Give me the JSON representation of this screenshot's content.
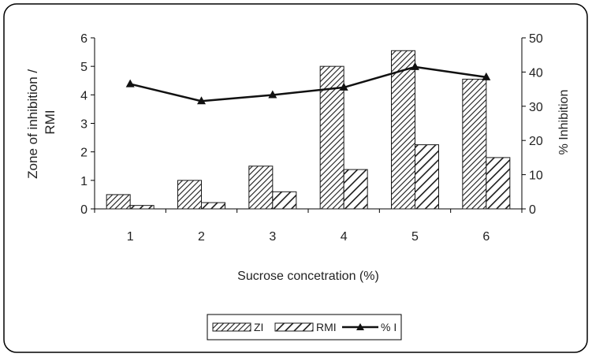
{
  "chart_data": {
    "type": "bar",
    "categories": [
      "1",
      "2",
      "3",
      "4",
      "5",
      "6"
    ],
    "series": [
      {
        "name": "ZI",
        "type": "bar",
        "axis": "left",
        "pattern": "dense-diagonal",
        "values": [
          0.5,
          1.0,
          1.5,
          5.0,
          5.55,
          4.55
        ]
      },
      {
        "name": "RMI",
        "type": "bar",
        "axis": "left",
        "pattern": "wide-diagonal",
        "values": [
          0.12,
          0.22,
          0.6,
          1.38,
          2.25,
          1.8
        ]
      },
      {
        "name": "% I",
        "type": "line",
        "axis": "right",
        "marker": "triangle",
        "values": [
          36.5,
          31.5,
          33.3,
          35.5,
          41.5,
          38.5
        ]
      }
    ],
    "xlabel": "Sucrose concetration (%)",
    "ylabel": "Zone of inhibition / RMI",
    "ylabel_lines": [
      "Zone of inhibition /",
      "RMI"
    ],
    "y2label": "% Inhibition",
    "ylim": [
      0,
      6
    ],
    "y2lim": [
      0,
      50
    ],
    "yticks": [
      "0",
      "1",
      "2",
      "3",
      "4",
      "5",
      "6"
    ],
    "y2ticks": [
      "0",
      "10",
      "20",
      "30",
      "40",
      "50"
    ],
    "grid": false,
    "legend": "bottom-center",
    "colors": {
      "bar_stroke": "#1a1a1a",
      "line": "#111111",
      "frame": "#000000",
      "background": "#ffffff"
    }
  }
}
